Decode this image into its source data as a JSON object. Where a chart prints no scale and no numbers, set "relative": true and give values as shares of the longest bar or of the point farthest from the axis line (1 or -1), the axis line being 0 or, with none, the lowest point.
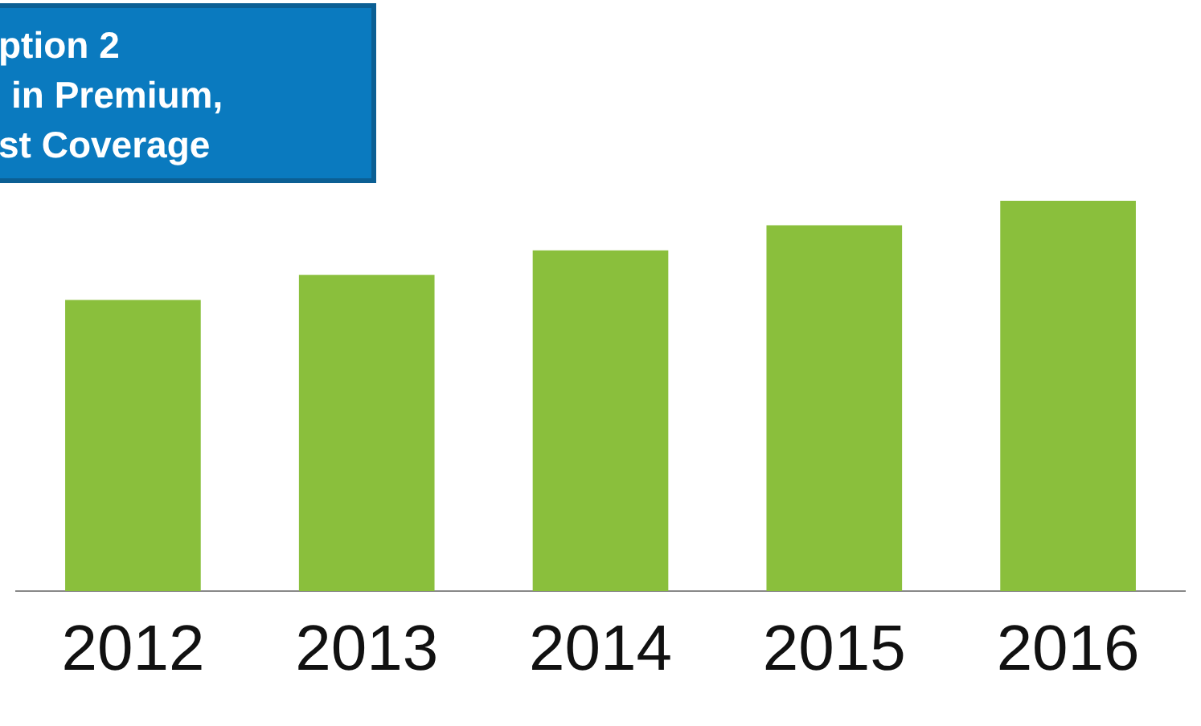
{
  "chart_data": {
    "type": "bar",
    "categories": [
      "2012",
      "2013",
      "2014",
      "2015",
      "2016"
    ],
    "values": [
      0.746,
      0.81,
      0.873,
      0.937,
      1
    ],
    "color": "#8abf3c",
    "relative": true,
    "grid": false,
    "legend": false,
    "annotations": [
      "ption 2",
      "in Premium,",
      "st Coverage"
    ]
  }
}
